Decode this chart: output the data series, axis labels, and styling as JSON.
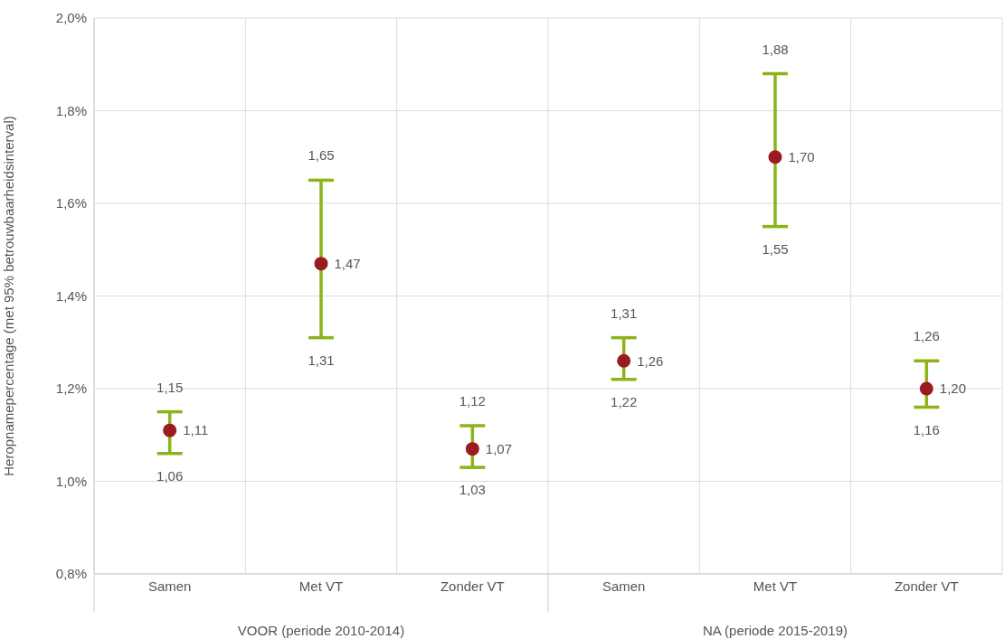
{
  "chart_data": {
    "type": "scatter",
    "ylabel": "Heropnamepercentage (met 95% betrouwbaarheidsinterval)",
    "categories": [
      "Samen",
      "Met VT",
      "Zonder VT",
      "Samen",
      "Met VT",
      "Zonder VT"
    ],
    "series": [
      {
        "color": "#9b1b23",
        "values": [
          1.11,
          1.47,
          1.07,
          1.26,
          1.7,
          1.2
        ],
        "errors": [
          [
            1.06,
            1.15
          ],
          [
            1.31,
            1.65
          ],
          [
            1.03,
            1.12
          ],
          [
            1.22,
            1.31
          ],
          [
            1.55,
            1.88
          ],
          [
            1.16,
            1.26
          ]
        ],
        "value_labels": [
          "1,11",
          "1,47",
          "1,07",
          "1,26",
          "1,70",
          "1,20"
        ]
      }
    ],
    "ylim": [
      0.8,
      2.0
    ],
    "yticks": [
      {
        "value": 0.8,
        "label": "0,8%"
      },
      {
        "value": 1.0,
        "label": "1,0%"
      },
      {
        "value": 1.2,
        "label": "1,2%"
      },
      {
        "value": 1.4,
        "label": "1,4%"
      },
      {
        "value": 1.6,
        "label": "1,6%"
      },
      {
        "value": 1.8,
        "label": "1,8%"
      },
      {
        "value": 2.0,
        "label": "2,0%"
      }
    ],
    "grid": true,
    "marker": "circle",
    "annotations": [
      "1,15",
      "1,06",
      "1,65",
      "1,31",
      "1,12",
      "1,03",
      "1,31",
      "1,22",
      "1,88",
      "1,55",
      "1,26",
      "1,16",
      "VOOR (periode 2010-2014)",
      "NA (periode 2015-2019)"
    ]
  }
}
